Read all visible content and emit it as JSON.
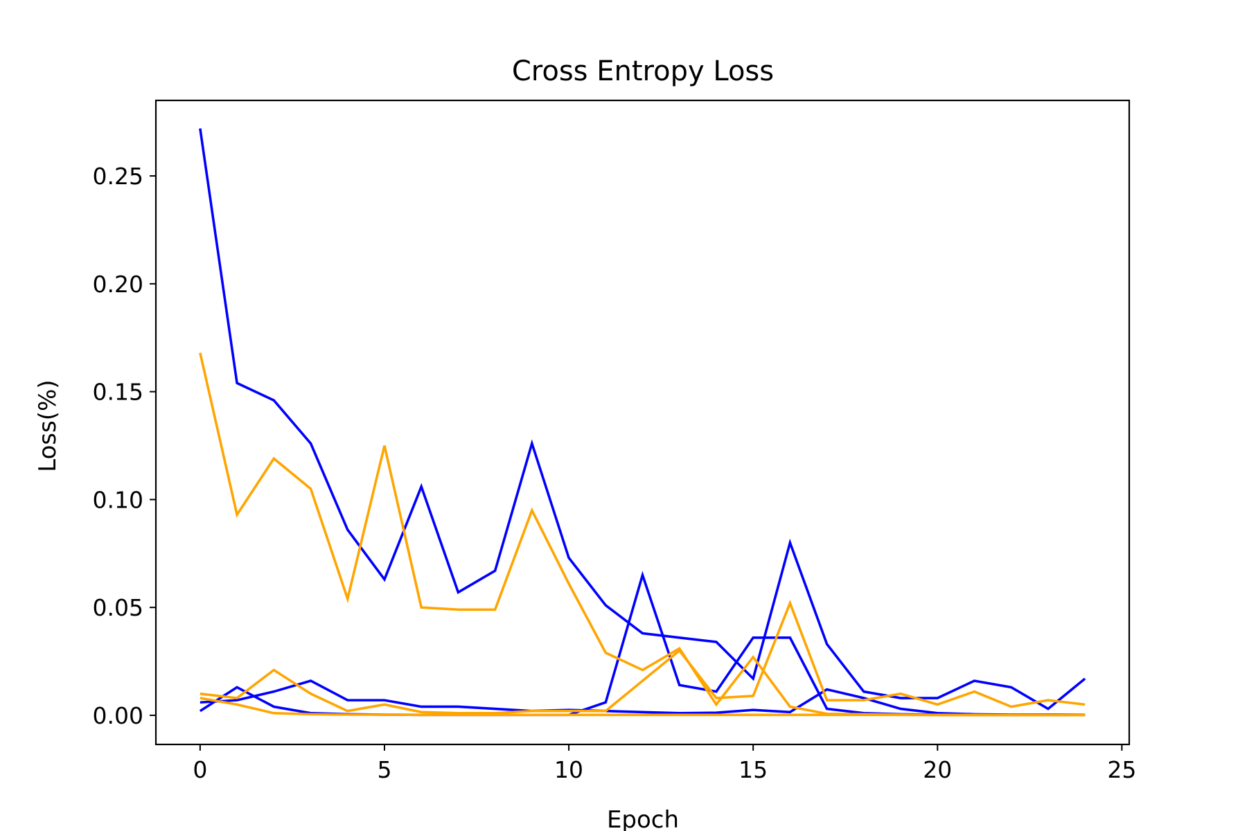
{
  "chart_data": {
    "type": "line",
    "title": "Cross Entropy Loss",
    "xlabel": "Epoch",
    "ylabel": "Loss(%)",
    "xlim": [
      -1.2,
      25.2
    ],
    "ylim": [
      -0.0135,
      0.285
    ],
    "xticks": [
      0,
      5,
      10,
      15,
      20,
      25
    ],
    "xtick_labels": [
      "0",
      "5",
      "10",
      "15",
      "20",
      "25"
    ],
    "yticks": [
      0.0,
      0.05,
      0.1,
      0.15,
      0.2,
      0.25
    ],
    "ytick_labels": [
      "0.00",
      "0.05",
      "0.10",
      "0.15",
      "0.20",
      "0.25"
    ],
    "grid": false,
    "legend": "none",
    "x": [
      0,
      1,
      2,
      3,
      4,
      5,
      6,
      7,
      8,
      9,
      10,
      11,
      12,
      13,
      14,
      15,
      16,
      17,
      18,
      19,
      20,
      21,
      22,
      23,
      24
    ],
    "series": [
      {
        "color": "#0000ff",
        "values": [
          0.272,
          0.154,
          0.146,
          0.126,
          0.086,
          0.063,
          0.106,
          0.057,
          0.067,
          0.126,
          0.073,
          0.051,
          0.038,
          0.036,
          0.034,
          0.017,
          0.08,
          0.033,
          0.011,
          0.008,
          0.008,
          0.016,
          0.013,
          0.003,
          0.017
        ]
      },
      {
        "color": "#0000ff",
        "values": [
          0.002,
          0.013,
          0.004,
          0.001,
          0.0005,
          0.0003,
          0.0002,
          0.0002,
          0.0002,
          0.0002,
          0.0002,
          0.006,
          0.065,
          0.014,
          0.011,
          0.036,
          0.036,
          0.003,
          0.001,
          0.0005,
          0.0003,
          0.0002,
          0.0002,
          0.0002,
          0.0002
        ]
      },
      {
        "color": "#0000ff",
        "values": [
          0.006,
          0.007,
          0.011,
          0.016,
          0.007,
          0.007,
          0.004,
          0.004,
          0.003,
          0.002,
          0.0025,
          0.002,
          0.0015,
          0.001,
          0.0012,
          0.0025,
          0.0015,
          0.012,
          0.008,
          0.003,
          0.001,
          0.0005,
          0.0003,
          0.0003,
          0.0002
        ]
      },
      {
        "color": "#ffa500",
        "values": [
          0.168,
          0.093,
          0.119,
          0.105,
          0.054,
          0.125,
          0.05,
          0.049,
          0.049,
          0.095,
          0.061,
          0.029,
          0.021,
          0.031,
          0.005,
          0.027,
          0.004,
          0.0007,
          0.0005,
          0.0003,
          0.0002,
          0.0002,
          0.0001,
          0.0001,
          0.0001
        ]
      },
      {
        "color": "#ffa500",
        "values": [
          0.01,
          0.008,
          0.021,
          0.01,
          0.002,
          0.005,
          0.0015,
          0.001,
          0.001,
          0.002,
          0.002,
          0.002,
          0.016,
          0.03,
          0.008,
          0.009,
          0.052,
          0.007,
          0.007,
          0.01,
          0.005,
          0.011,
          0.004,
          0.007,
          0.005
        ]
      },
      {
        "color": "#ffa500",
        "values": [
          0.008,
          0.005,
          0.001,
          0.0005,
          0.0003,
          0.0003,
          0.0002,
          0.0002,
          0.0002,
          0.0002,
          0.0002,
          0.0002,
          0.0002,
          0.0002,
          0.0002,
          0.0002,
          0.0002,
          0.0002,
          0.0002,
          0.0002,
          0.0001,
          0.0001,
          0.0001,
          0.0001,
          0.0001
        ]
      }
    ]
  }
}
